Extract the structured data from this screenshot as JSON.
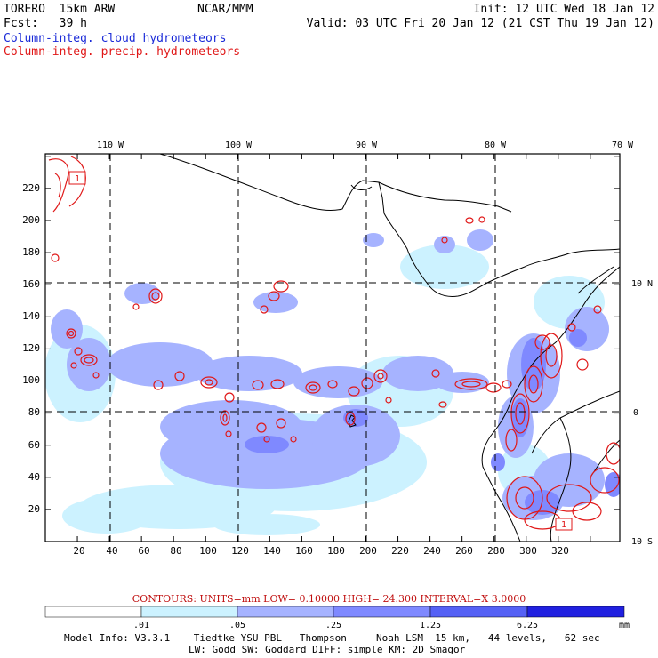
{
  "header": {
    "model_title": "TORERO  15km ARW",
    "center": "NCAR/MMM",
    "init": "Init: 12 UTC Wed 18 Jan 12",
    "fcst": "Fcst:   39 h",
    "valid": "Valid: 03 UTC Fri 20 Jan 12 (21 CST Thu 19 Jan 12)",
    "line_cloud": "Column-integ. cloud hydrometeors",
    "line_precip": "Column-integ. precip. hydrometeors"
  },
  "map": {
    "lon_labels": [
      "110 W",
      "100 W",
      "90 W",
      "80 W",
      "70 W"
    ],
    "lat_labels": [
      "10 N",
      "0",
      "10 S"
    ],
    "x_ticks": [
      "20",
      "40",
      "60",
      "80",
      "100",
      "120",
      "140",
      "160",
      "180",
      "200",
      "220",
      "240",
      "260",
      "280",
      "300",
      "320"
    ],
    "y_ticks": [
      "20",
      "40",
      "60",
      "80",
      "100",
      "120",
      "140",
      "160",
      "180",
      "200",
      "220"
    ],
    "box_label": "1",
    "box_label_2": "1",
    "colors": {
      "cloud_light": "#ccf2ff",
      "cloud_mid": "#a6b3ff",
      "cloud_dark": "#6f78ff",
      "precip": "#e01818",
      "land": "#000000"
    }
  },
  "contours": {
    "text": "CONTOURS:  UNITS=mm  LOW= 0.10000     HIGH=  24.300     INTERVAL=X  3.0000"
  },
  "colorbar": {
    "labels": [
      ".01",
      ".05",
      ".25",
      "1.25",
      "6.25"
    ],
    "unit": "mm",
    "colors": [
      "#ffffff",
      "#ccf2ff",
      "#a6b3ff",
      "#8a94ff",
      "#6f78ff",
      "#4c57f0",
      "#2020e0"
    ]
  },
  "footer": {
    "line1": "Model Info: V3.3.1    Tiedtke YSU PBL   Thompson     Noah LSM  15 km,   44 levels,   62 sec",
    "line2": "LW: Godd SW: Goddard DIFF: simple KM: 2D Smagor"
  }
}
